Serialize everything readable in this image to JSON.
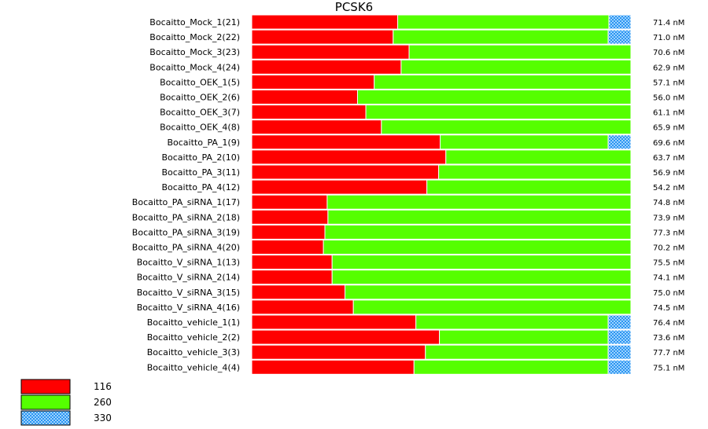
{
  "chart_data": {
    "type": "bar",
    "stacked": true,
    "orientation": "horizontal",
    "normalized": true,
    "title": "PCSK6",
    "categories": [
      "Bocaitto_Mock_1(21)",
      "Bocaitto_Mock_2(22)",
      "Bocaitto_Mock_3(23)",
      "Bocaitto_Mock_4(24)",
      "Bocaitto_OEK_1(5)",
      "Bocaitto_OEK_2(6)",
      "Bocaitto_OEK_3(7)",
      "Bocaitto_OEK_4(8)",
      "Bocaitto_PA_1(9)",
      "Bocaitto_PA_2(10)",
      "Bocaitto_PA_3(11)",
      "Bocaitto_PA_4(12)",
      "Bocaitto_PA_siRNA_1(17)",
      "Bocaitto_PA_siRNA_2(18)",
      "Bocaitto_PA_siRNA_3(19)",
      "Bocaitto_PA_siRNA_4(20)",
      "Bocaitto_V_siRNA_1(13)",
      "Bocaitto_V_siRNA_2(14)",
      "Bocaitto_V_siRNA_3(15)",
      "Bocaitto_V_siRNA_4(16)",
      "Bocaitto_vehicle_1(1)",
      "Bocaitto_vehicle_2(2)",
      "Bocaitto_vehicle_3(3)",
      "Bocaitto_vehicle_4(4)"
    ],
    "series": [
      {
        "name": "116",
        "color": "#ff0000",
        "pattern": "solid",
        "values": [
          0.385,
          0.373,
          0.415,
          0.394,
          0.323,
          0.279,
          0.301,
          0.342,
          0.497,
          0.512,
          0.493,
          0.462,
          0.199,
          0.201,
          0.193,
          0.189,
          0.212,
          0.212,
          0.246,
          0.268,
          0.433,
          0.495,
          0.458,
          0.428
        ]
      },
      {
        "name": "260",
        "color": "#55ff00",
        "pattern": "solid",
        "values": [
          0.557,
          0.567,
          0.585,
          0.606,
          0.677,
          0.721,
          0.699,
          0.658,
          0.443,
          0.488,
          0.507,
          0.538,
          0.801,
          0.799,
          0.807,
          0.811,
          0.788,
          0.788,
          0.754,
          0.732,
          0.507,
          0.445,
          0.482,
          0.512
        ]
      },
      {
        "name": "330",
        "color": "#1e90ff",
        "pattern": "checker",
        "values": [
          0.058,
          0.06,
          0,
          0,
          0,
          0,
          0,
          0,
          0.06,
          0,
          0,
          0,
          0,
          0,
          0,
          0,
          0,
          0,
          0,
          0,
          0.06,
          0.06,
          0.06,
          0.06
        ]
      }
    ],
    "right_labels": [
      "71.4 nM",
      "71.0 nM",
      "70.6 nM",
      "62.9 nM",
      "57.1 nM",
      "56.0 nM",
      "61.1 nM",
      "65.9 nM",
      "69.6 nM",
      "63.7 nM",
      "56.9 nM",
      "54.2 nM",
      "74.8 nM",
      "73.9 nM",
      "77.3 nM",
      "70.2 nM",
      "75.5 nM",
      "74.1 nM",
      "75.0 nM",
      "74.5 nM",
      "76.4 nM",
      "73.6 nM",
      "77.7 nM",
      "75.1 nM"
    ],
    "legend": {
      "position": "bottom-left",
      "entries": [
        "116",
        "260",
        "330"
      ]
    },
    "grid": false,
    "xlim": [
      0,
      1
    ]
  }
}
